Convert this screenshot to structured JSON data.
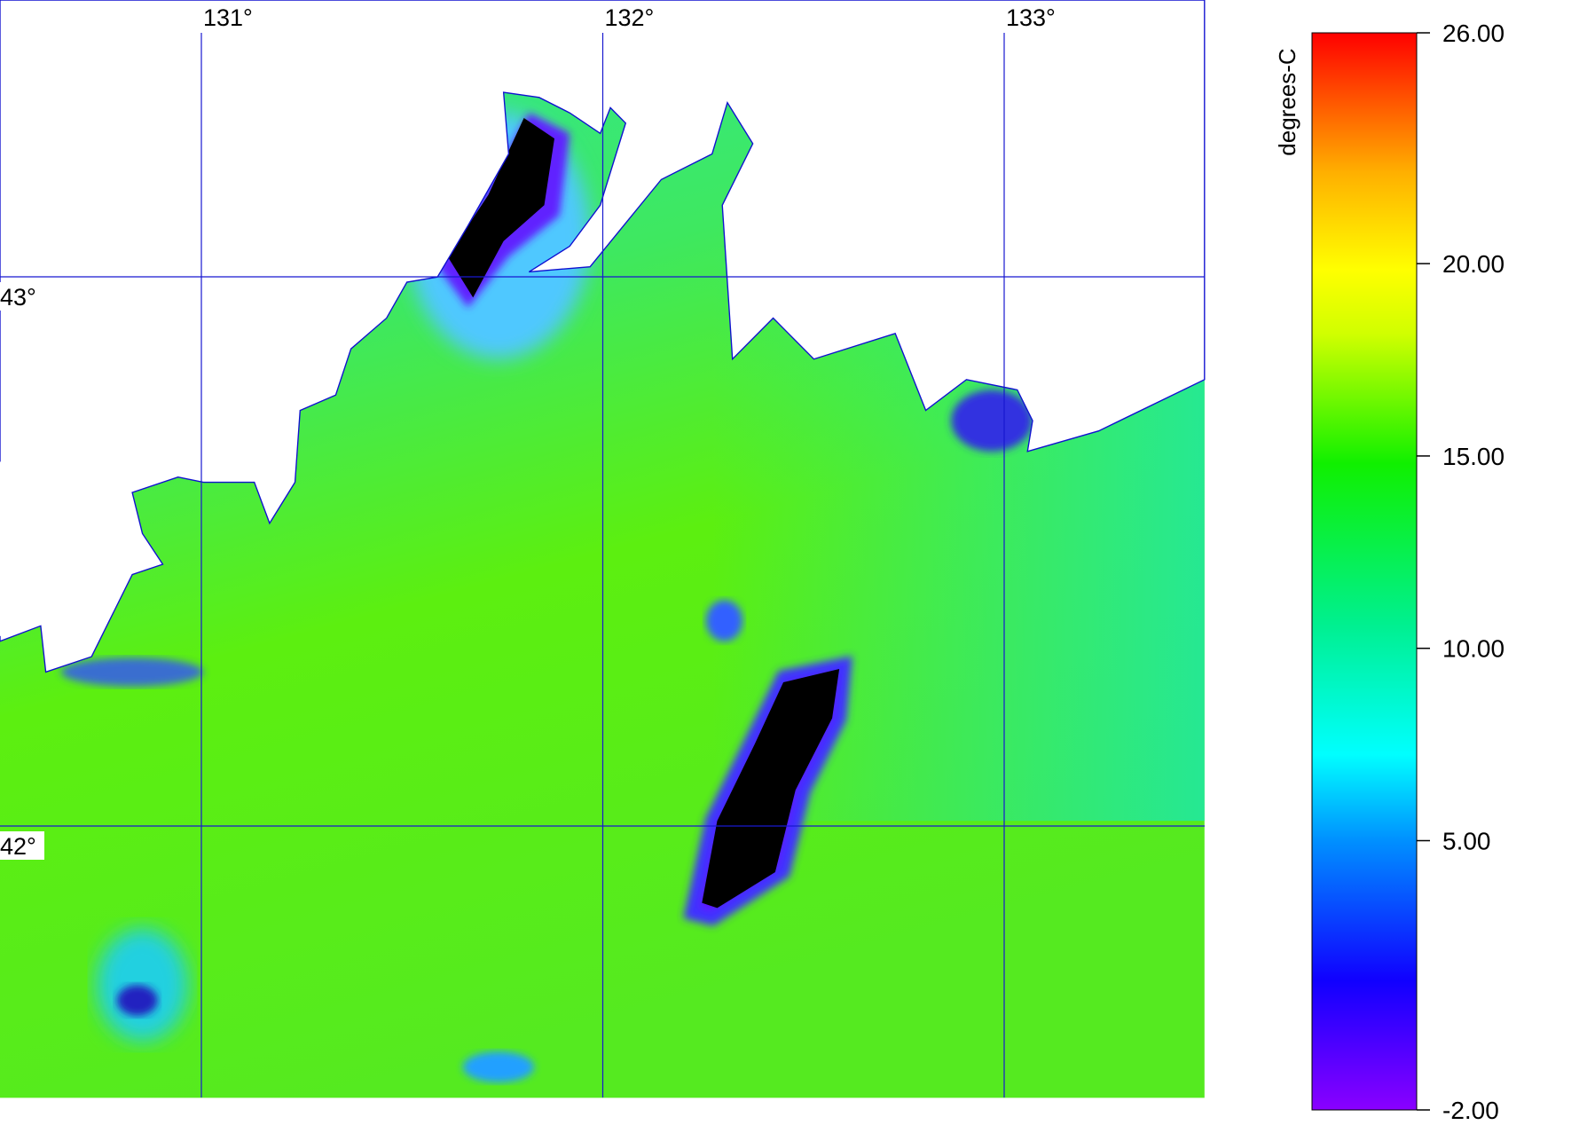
{
  "map": {
    "longitude_ticks": [
      {
        "value": 131,
        "label": "131°"
      },
      {
        "value": 132,
        "label": "132°"
      },
      {
        "value": 133,
        "label": "133°"
      }
    ],
    "latitude_ticks": [
      {
        "value": 43,
        "label": "43°"
      },
      {
        "value": 42,
        "label": "42°"
      }
    ],
    "colorbar": {
      "label": "degrees-C",
      "ticks": [
        {
          "value": 26,
          "label": "26.00"
        },
        {
          "value": 20,
          "label": "20.00"
        },
        {
          "value": 15,
          "label": "15.00"
        },
        {
          "value": 10,
          "label": "10.00"
        },
        {
          "value": 5,
          "label": "5.00"
        },
        {
          "value": -2,
          "label": "-2.00"
        }
      ]
    }
  }
}
